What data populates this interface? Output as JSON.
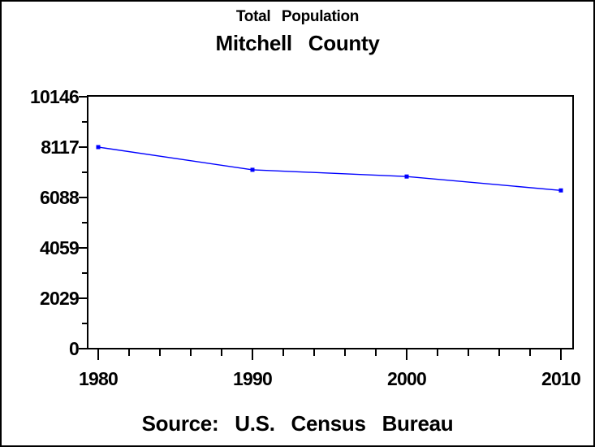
{
  "chart_data": {
    "type": "line",
    "title": "Total Population",
    "subtitle": "Mitchell County",
    "source_note": "Source: U.S. Census Bureau",
    "x": [
      1980,
      1990,
      2000,
      2010
    ],
    "x_tick_labels": [
      "1980",
      "1990",
      "2000",
      "2010"
    ],
    "series": [
      {
        "name": "Total Population",
        "values": [
          8117,
          7203,
          6932,
          6373
        ]
      }
    ],
    "xlim": [
      1980,
      2010
    ],
    "ylim": [
      0,
      10146
    ],
    "y_ticks": [
      0,
      2029,
      4059,
      6088,
      8117,
      10146
    ],
    "y_tick_labels": [
      "0",
      "2029",
      "4059",
      "6088",
      "8117",
      "10146"
    ],
    "x_minor_step_years": 2,
    "grid": false,
    "legend": "none",
    "line_color": "#0000ff",
    "marker": "square",
    "axis_color": "#000000",
    "text_color": "#000000",
    "background": "#ffffff"
  }
}
